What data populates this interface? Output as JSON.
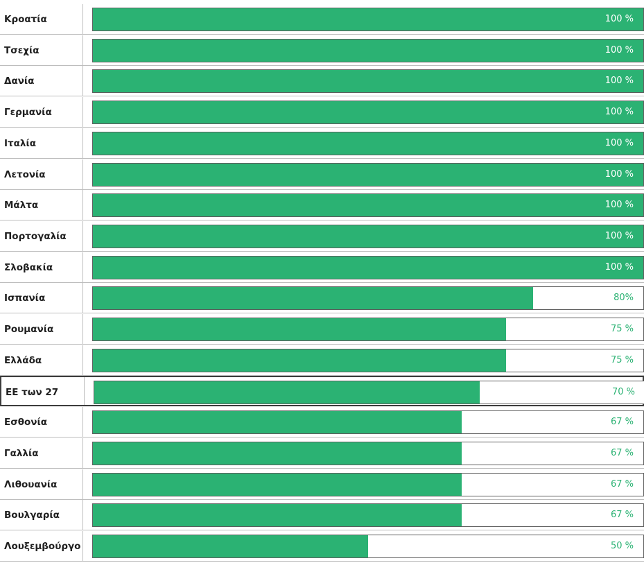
{
  "chart_data": {
    "type": "bar",
    "orientation": "horizontal",
    "categories": [
      "Κροατία",
      "Τσεχία",
      "Δανία",
      "Γερμανία",
      "Ιταλία",
      "Λετονία",
      "Μάλτα",
      "Πορτογαλία",
      "Σλοβακία",
      "Ισπανία",
      "Ρουμανία",
      "Ελλάδα",
      "ΕΕ των 27",
      "Εσθονία",
      "Γαλλία",
      "Λιθουανία",
      "Βουλγαρία",
      "Λουξεμβούργο"
    ],
    "values": [
      100,
      100,
      100,
      100,
      100,
      100,
      100,
      100,
      100,
      80,
      75,
      75,
      70,
      67,
      67,
      67,
      67,
      50
    ],
    "value_labels": [
      "100 %",
      "100 %",
      "100 %",
      "100 %",
      "100 %",
      "100 %",
      "100 %",
      "100 %",
      "100 %",
      "80%",
      "75 %",
      "75 %",
      "70 %",
      "67 %",
      "67 %",
      "67 %",
      "67 %",
      "50 %"
    ],
    "highlighted_category": "ΕΕ των 27",
    "xlim": [
      0,
      100
    ],
    "bar_color": "#2bb273",
    "grid": false
  }
}
